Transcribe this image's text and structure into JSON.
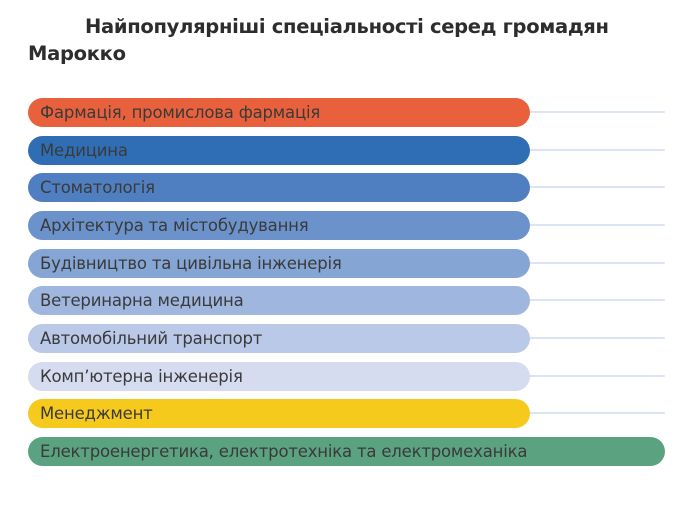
{
  "title": {
    "text": "Найпопулярніші спеціальності серед громадян Марокко",
    "lines": [
      "Найпопулярніші спеціальності серед громадян",
      "Марокко"
    ],
    "color": "#2d2d2d"
  },
  "chart_data": {
    "type": "bar",
    "orientation": "horizontal",
    "title": "Найпопулярніші спеціальності серед громадян Марокко",
    "xlabel": "",
    "ylabel": "",
    "xlim": [
      0,
      1
    ],
    "values_labeled": false,
    "axis_ticks": "none",
    "grid": "per-row horizontal track lines to axis end",
    "axis_track_color": "#dbe4f4",
    "label_color": "#3a3a3a",
    "background_color": "#ffffff",
    "categories": [
      "Фармація, промислова фармація",
      "Медицина",
      "Стоматологія",
      "Архітектура та містобудування",
      "Будівництво та цивільна інженерія",
      "Ветеринарна медицина",
      "Автомобільний транспорт",
      "Компʼютерна інженерія",
      "Менеджмент",
      "Електроенергетика, електротехніка та електромеханіка"
    ],
    "bars": [
      {
        "label": "Фармація, промислова фармація",
        "color": "#e8613c",
        "length_frac": 0.788
      },
      {
        "label": "Медицина",
        "color": "#2f6eb5",
        "length_frac": 0.788
      },
      {
        "label": "Стоматологія",
        "color": "#4f7fc1",
        "length_frac": 0.788
      },
      {
        "label": "Архітектура та містобудування",
        "color": "#6b92cb",
        "length_frac": 0.788
      },
      {
        "label": "Будівництво та цивільна інженерія",
        "color": "#85a5d4",
        "length_frac": 0.788
      },
      {
        "label": "Ветеринарна медицина",
        "color": "#9fb7de",
        "length_frac": 0.788
      },
      {
        "label": "Автомобільний транспорт",
        "color": "#b9c9e7",
        "length_frac": 0.788
      },
      {
        "label": "Компʼютерна інженерія",
        "color": "#d5dcef",
        "length_frac": 0.788
      },
      {
        "label": "Менеджмент",
        "color": "#f5ca1c",
        "length_frac": 0.788
      },
      {
        "label": "Електроенергетика, електротехніка та електромеханіка",
        "color": "#5ba280",
        "length_frac": 1.0
      }
    ]
  }
}
